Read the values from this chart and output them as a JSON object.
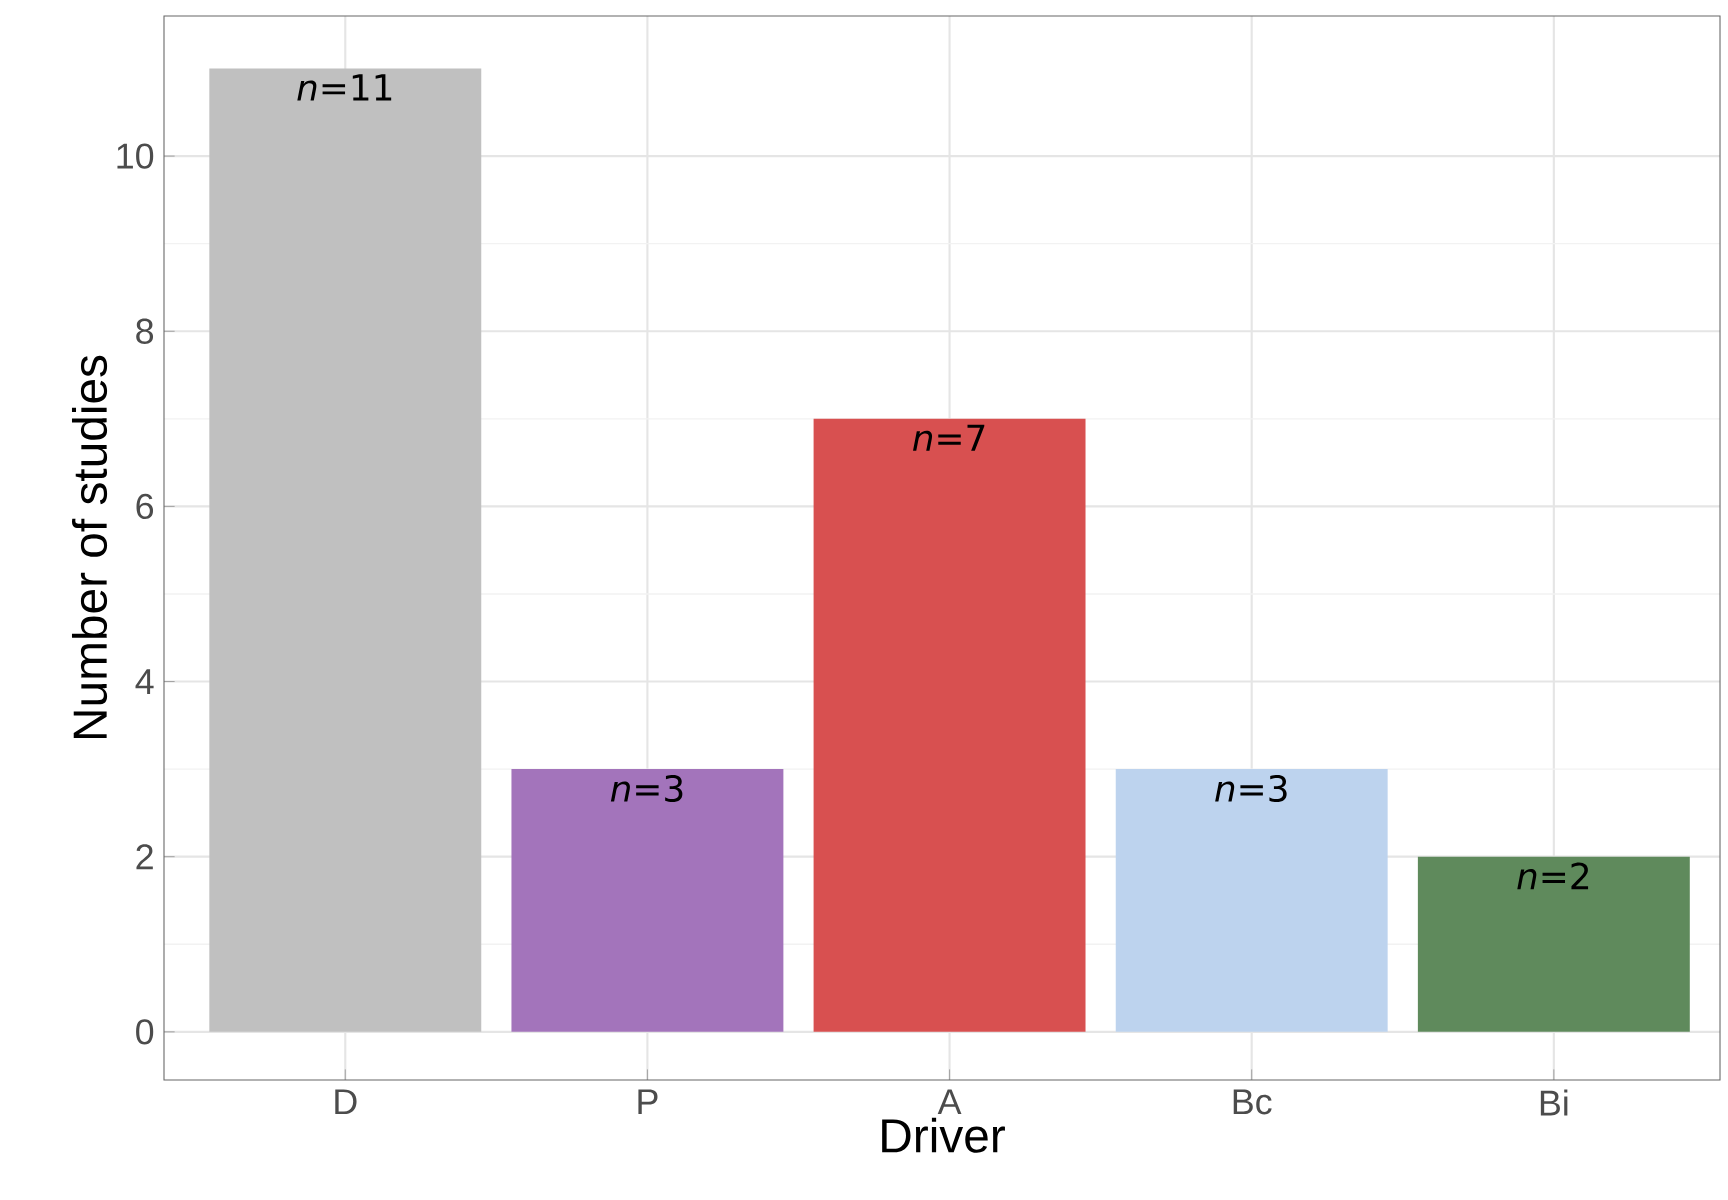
{
  "chart_data": {
    "type": "bar",
    "xlabel": "Driver",
    "ylabel": "Number of studies",
    "categories": [
      "D",
      "P",
      "A",
      "Bc",
      "Bi"
    ],
    "values": [
      11,
      3,
      7,
      3,
      2
    ],
    "colors": [
      "#c0c0c0",
      "#a374bb",
      "#d85050",
      "#bdd3ee",
      "#5f8a5c"
    ],
    "value_labels": [
      "*n*=11",
      "*n*=3",
      "*n*=7",
      "*n*=3",
      "*n*=2"
    ],
    "ylim": [
      -0.55,
      11.6
    ],
    "yticks": [
      0,
      2,
      4,
      6,
      8,
      10
    ],
    "grid": true
  }
}
